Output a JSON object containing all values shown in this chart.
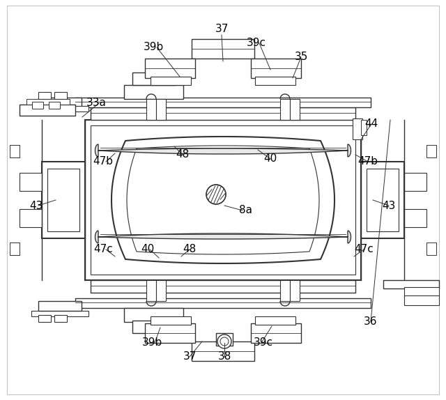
{
  "bg_color": "#ffffff",
  "lc": "#333333",
  "lc_thin": "#555555",
  "lw": 1.0,
  "lw_thick": 1.5,
  "labels": {
    "37_top": [
      318,
      42,
      "37"
    ],
    "39b_top": [
      220,
      68,
      "39b"
    ],
    "39c_top": [
      368,
      62,
      "39c"
    ],
    "35": [
      432,
      82,
      "35"
    ],
    "33a": [
      138,
      148,
      "33a"
    ],
    "44": [
      533,
      178,
      "44"
    ],
    "47b_left": [
      148,
      232,
      "47b"
    ],
    "48_top": [
      262,
      222,
      "48"
    ],
    "40_right": [
      388,
      228,
      "40"
    ],
    "47b_right": [
      528,
      232,
      "47b"
    ],
    "43_left": [
      52,
      295,
      "43"
    ],
    "8a": [
      352,
      302,
      "8a"
    ],
    "43_right": [
      558,
      295,
      "43"
    ],
    "47c_left": [
      148,
      358,
      "47c"
    ],
    "40_left": [
      212,
      358,
      "40"
    ],
    "48_bottom": [
      272,
      358,
      "48"
    ],
    "47c_right": [
      522,
      358,
      "47c"
    ],
    "39b_bot": [
      218,
      492,
      "39b"
    ],
    "37_bot": [
      272,
      512,
      "37"
    ],
    "38": [
      322,
      512,
      "38"
    ],
    "39c_bot": [
      378,
      492,
      "39c"
    ],
    "36": [
      532,
      462,
      "36"
    ]
  }
}
